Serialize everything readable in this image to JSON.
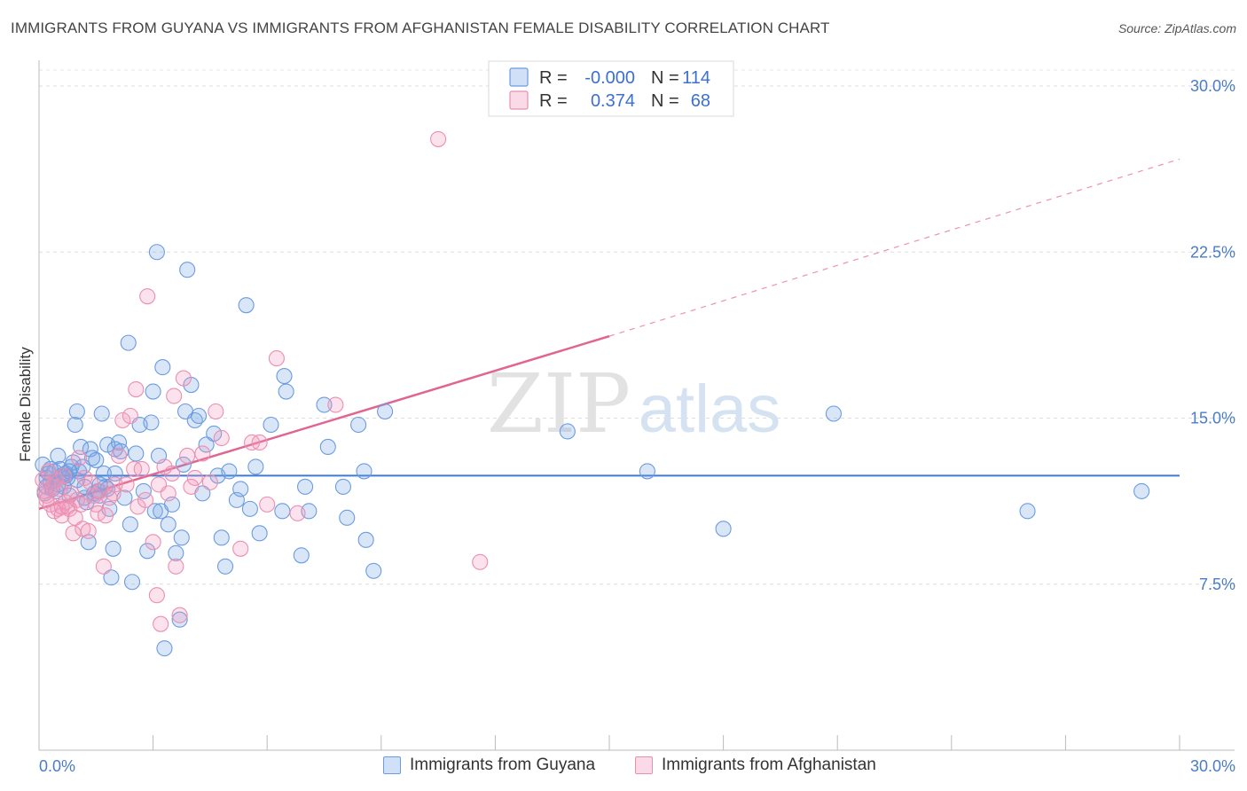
{
  "title": "IMMIGRANTS FROM GUYANA VS IMMIGRANTS FROM AFGHANISTAN FEMALE DISABILITY CORRELATION CHART",
  "source": "Source: ZipAtlas.com",
  "watermark": {
    "zip": "ZIP",
    "atlas": "atlas"
  },
  "chart_data": {
    "type": "scatter",
    "xlabel": "",
    "ylabel": "Female Disability",
    "xlim": [
      0,
      30
    ],
    "ylim": [
      0,
      31
    ],
    "x_tick_labels": [
      "0.0%",
      "30.0%"
    ],
    "y_ticks": [
      7.5,
      15.0,
      22.5,
      30.0
    ],
    "y_tick_labels": [
      "7.5%",
      "15.0%",
      "22.5%",
      "30.0%"
    ],
    "legend": {
      "rows": [
        {
          "r_label": "R = ",
          "r_value": "-0.000",
          "n_label": "N = ",
          "n_value": "114"
        },
        {
          "r_label": "R = ",
          "r_value": "0.374",
          "n_label": "N = ",
          "n_value": "68"
        }
      ]
    },
    "series": [
      {
        "name": "Immigrants from Guyana",
        "color": "#6b9be0",
        "fill": "rgba(120,165,230,0.28)",
        "line_color": "#3c7bd6",
        "trend": {
          "x0": 0,
          "y0": 12.4,
          "x1": 30,
          "y1": 12.4,
          "dashed_from": null
        },
        "points": [
          [
            0.1,
            12.9
          ],
          [
            0.15,
            11.6
          ],
          [
            0.2,
            12.3
          ],
          [
            0.25,
            12.5
          ],
          [
            0.3,
            12.1
          ],
          [
            0.35,
            11.8
          ],
          [
            0.4,
            12.6
          ],
          [
            0.45,
            12.2
          ],
          [
            0.5,
            13.3
          ],
          [
            0.55,
            12.7
          ],
          [
            0.6,
            12.4
          ],
          [
            0.65,
            11.9
          ],
          [
            0.7,
            12.5
          ],
          [
            0.75,
            12.3
          ],
          [
            0.8,
            11.5
          ],
          [
            0.85,
            12.8
          ],
          [
            0.9,
            13.0
          ],
          [
            0.95,
            14.7
          ],
          [
            1.0,
            15.3
          ],
          [
            1.05,
            12.6
          ],
          [
            1.1,
            13.7
          ],
          [
            1.15,
            12.8
          ],
          [
            1.2,
            11.4
          ],
          [
            1.25,
            11.2
          ],
          [
            1.3,
            9.4
          ],
          [
            1.35,
            13.6
          ],
          [
            1.4,
            13.2
          ],
          [
            1.45,
            11.6
          ],
          [
            1.5,
            13.1
          ],
          [
            1.55,
            11.7
          ],
          [
            1.6,
            11.5
          ],
          [
            1.65,
            15.2
          ],
          [
            1.7,
            12.5
          ],
          [
            1.75,
            11.9
          ],
          [
            1.8,
            13.8
          ],
          [
            1.85,
            10.9
          ],
          [
            1.9,
            7.8
          ],
          [
            1.95,
            9.1
          ],
          [
            2.0,
            13.6
          ],
          [
            2.1,
            13.9
          ],
          [
            2.15,
            13.5
          ],
          [
            2.25,
            11.4
          ],
          [
            2.35,
            18.4
          ],
          [
            2.4,
            10.2
          ],
          [
            2.45,
            7.6
          ],
          [
            2.55,
            13.4
          ],
          [
            2.65,
            14.7
          ],
          [
            2.75,
            11.7
          ],
          [
            2.85,
            9.0
          ],
          [
            2.95,
            14.8
          ],
          [
            3.0,
            16.2
          ],
          [
            3.05,
            10.8
          ],
          [
            3.1,
            22.5
          ],
          [
            3.15,
            13.3
          ],
          [
            3.2,
            10.8
          ],
          [
            3.25,
            17.3
          ],
          [
            3.3,
            4.6
          ],
          [
            3.4,
            10.2
          ],
          [
            3.5,
            11.1
          ],
          [
            3.6,
            8.9
          ],
          [
            3.7,
            5.9
          ],
          [
            3.75,
            9.6
          ],
          [
            3.8,
            12.9
          ],
          [
            3.85,
            15.3
          ],
          [
            3.9,
            21.7
          ],
          [
            4.0,
            16.5
          ],
          [
            4.1,
            14.9
          ],
          [
            4.2,
            15.1
          ],
          [
            4.3,
            11.6
          ],
          [
            4.4,
            13.8
          ],
          [
            4.6,
            14.3
          ],
          [
            4.7,
            12.4
          ],
          [
            4.8,
            9.6
          ],
          [
            4.9,
            8.3
          ],
          [
            5.0,
            12.6
          ],
          [
            5.2,
            11.3
          ],
          [
            5.3,
            11.8
          ],
          [
            5.45,
            20.1
          ],
          [
            5.55,
            10.9
          ],
          [
            5.7,
            12.8
          ],
          [
            5.8,
            9.8
          ],
          [
            6.1,
            14.7
          ],
          [
            6.4,
            10.8
          ],
          [
            6.45,
            16.9
          ],
          [
            6.5,
            16.2
          ],
          [
            6.9,
            8.8
          ],
          [
            7.0,
            11.9
          ],
          [
            7.1,
            10.8
          ],
          [
            7.5,
            15.6
          ],
          [
            7.6,
            13.7
          ],
          [
            8.0,
            11.9
          ],
          [
            8.1,
            10.5
          ],
          [
            8.4,
            14.7
          ],
          [
            8.55,
            12.6
          ],
          [
            8.6,
            9.5
          ],
          [
            8.8,
            8.1
          ],
          [
            9.1,
            15.3
          ],
          [
            13.9,
            14.4
          ],
          [
            16.0,
            12.6
          ],
          [
            18.0,
            10.0
          ],
          [
            20.9,
            15.2
          ],
          [
            26.0,
            10.8
          ],
          [
            29.0,
            11.7
          ],
          [
            0.2,
            11.9
          ],
          [
            0.5,
            12.0
          ],
          [
            0.7,
            12.4
          ],
          [
            1.0,
            12.2
          ],
          [
            1.6,
            12.0
          ],
          [
            2.0,
            12.5
          ],
          [
            0.3,
            12.7
          ],
          [
            0.45,
            11.7
          ],
          [
            0.8,
            12.6
          ],
          [
            1.2,
            11.9
          ],
          [
            1.8,
            11.8
          ]
        ]
      },
      {
        "name": "Immigrants from Afghanistan",
        "color": "#ea8fb0",
        "fill": "rgba(240,150,185,0.28)",
        "line_color": "#e06591",
        "trend": {
          "x0": 0,
          "y0": 10.9,
          "x1": 15,
          "y1": 18.7,
          "x2": 30,
          "y2": 26.7
        },
        "points": [
          [
            0.1,
            12.2
          ],
          [
            0.15,
            11.7
          ],
          [
            0.2,
            11.5
          ],
          [
            0.25,
            12.6
          ],
          [
            0.3,
            11.1
          ],
          [
            0.35,
            11.9
          ],
          [
            0.4,
            10.8
          ],
          [
            0.45,
            12.2
          ],
          [
            0.5,
            10.9
          ],
          [
            0.55,
            11.8
          ],
          [
            0.6,
            10.6
          ],
          [
            0.65,
            12.4
          ],
          [
            0.7,
            11.2
          ],
          [
            0.75,
            11.0
          ],
          [
            0.8,
            10.9
          ],
          [
            0.85,
            11.6
          ],
          [
            0.9,
            9.8
          ],
          [
            0.95,
            10.5
          ],
          [
            1.0,
            11.3
          ],
          [
            1.05,
            13.2
          ],
          [
            1.1,
            11.1
          ],
          [
            1.15,
            10.0
          ],
          [
            1.2,
            12.3
          ],
          [
            1.3,
            9.9
          ],
          [
            1.35,
            12.1
          ],
          [
            1.45,
            11.5
          ],
          [
            1.5,
            11.1
          ],
          [
            1.55,
            10.7
          ],
          [
            1.6,
            11.7
          ],
          [
            1.7,
            8.3
          ],
          [
            1.75,
            10.6
          ],
          [
            1.85,
            11.4
          ],
          [
            1.95,
            11.6
          ],
          [
            2.0,
            12.0
          ],
          [
            2.1,
            13.3
          ],
          [
            2.2,
            14.9
          ],
          [
            2.3,
            12.0
          ],
          [
            2.4,
            15.1
          ],
          [
            2.5,
            12.7
          ],
          [
            2.55,
            16.3
          ],
          [
            2.6,
            11.0
          ],
          [
            2.7,
            12.7
          ],
          [
            2.8,
            11.3
          ],
          [
            2.85,
            20.5
          ],
          [
            3.0,
            9.4
          ],
          [
            3.1,
            7.0
          ],
          [
            3.15,
            12.0
          ],
          [
            3.2,
            5.7
          ],
          [
            3.3,
            12.8
          ],
          [
            3.4,
            11.6
          ],
          [
            3.5,
            12.5
          ],
          [
            3.55,
            16.0
          ],
          [
            3.6,
            8.3
          ],
          [
            3.7,
            6.1
          ],
          [
            3.8,
            16.8
          ],
          [
            3.9,
            13.3
          ],
          [
            4.0,
            11.9
          ],
          [
            4.1,
            12.3
          ],
          [
            4.3,
            13.4
          ],
          [
            4.5,
            12.1
          ],
          [
            4.65,
            15.3
          ],
          [
            4.8,
            14.1
          ],
          [
            5.3,
            9.1
          ],
          [
            5.6,
            13.9
          ],
          [
            5.8,
            13.9
          ],
          [
            6.0,
            11.1
          ],
          [
            6.25,
            17.7
          ],
          [
            6.8,
            10.7
          ],
          [
            7.8,
            15.6
          ],
          [
            11.6,
            8.5
          ],
          [
            10.5,
            27.6
          ],
          [
            0.2,
            11.3
          ],
          [
            0.6,
            11.0
          ]
        ]
      }
    ]
  }
}
